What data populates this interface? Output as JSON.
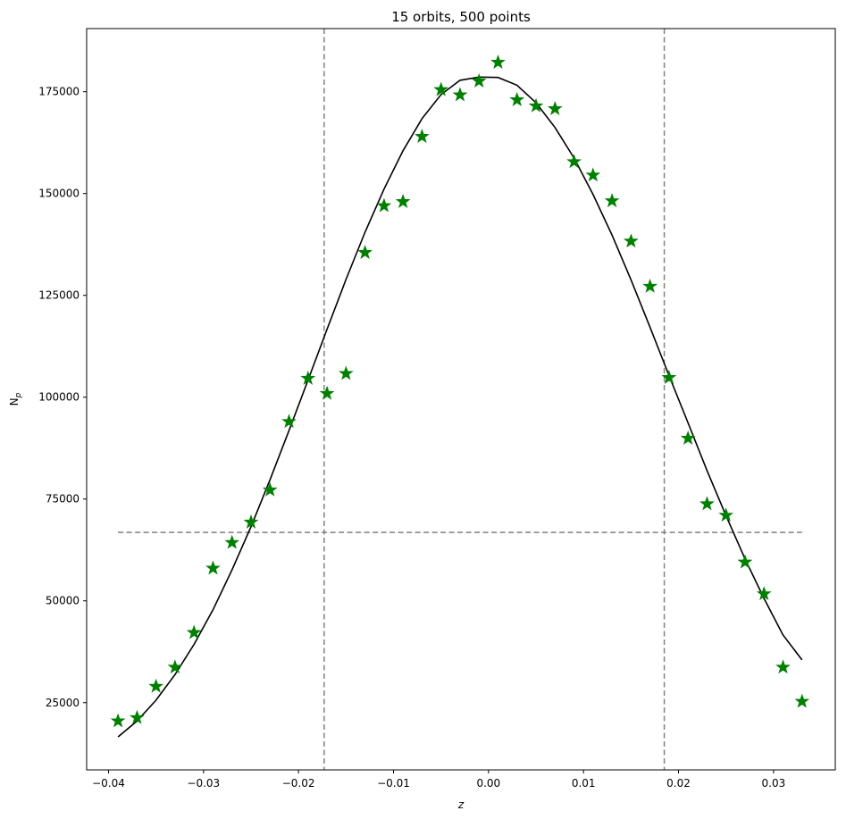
{
  "chart_data": {
    "type": "scatter",
    "title": "15 orbits, 500 points",
    "xlabel": "z",
    "ylabel": "N",
    "ylabel_sub": "p",
    "xlim": [
      -0.0423,
      0.0365
    ],
    "ylim": [
      8500,
      190500
    ],
    "xticks": [
      -0.04,
      -0.03,
      -0.02,
      -0.01,
      0.0,
      0.01,
      0.02,
      0.03
    ],
    "xtick_labels": [
      "−0.04",
      "−0.03",
      "−0.02",
      "−0.01",
      "0.00",
      "0.01",
      "0.02",
      "0.03"
    ],
    "yticks": [
      25000,
      50000,
      75000,
      100000,
      125000,
      150000,
      175000
    ],
    "ytick_labels": [
      "25000",
      "50000",
      "75000",
      "100000",
      "125000",
      "150000",
      "175000"
    ],
    "grid": false,
    "colors": {
      "points": "#008000",
      "fit": "#000000",
      "reference_lines": "#808080"
    },
    "series": [
      {
        "kind": "markers",
        "marker": "star",
        "x": [
          -0.039,
          -0.037,
          -0.035,
          -0.033,
          -0.031,
          -0.029,
          -0.027,
          -0.025,
          -0.023,
          -0.021,
          -0.019,
          -0.017,
          -0.015,
          -0.013,
          -0.011,
          -0.009,
          -0.007,
          -0.005,
          -0.003,
          -0.001,
          0.001,
          0.003,
          0.005,
          0.007,
          0.009,
          0.011,
          0.013,
          0.015,
          0.017,
          0.019,
          0.021,
          0.023,
          0.025,
          0.027,
          0.029,
          0.031,
          0.033
        ],
        "y": [
          20500,
          21300,
          29000,
          33700,
          42200,
          58000,
          64300,
          69300,
          77200,
          94000,
          104600,
          100900,
          105800,
          135500,
          147000,
          148000,
          164000,
          175500,
          174200,
          177600,
          182200,
          173000,
          171500,
          170800,
          157800,
          154500,
          148200,
          138300,
          127200,
          104800,
          89900,
          73800,
          71000,
          59500,
          51700,
          33700,
          25300
        ]
      },
      {
        "kind": "line",
        "x": [
          -0.039,
          -0.037,
          -0.035,
          -0.033,
          -0.031,
          -0.029,
          -0.027,
          -0.025,
          -0.023,
          -0.021,
          -0.019,
          -0.017,
          -0.015,
          -0.013,
          -0.011,
          -0.009,
          -0.007,
          -0.005,
          -0.003,
          -0.001,
          0.001,
          0.003,
          0.005,
          0.007,
          0.009,
          0.011,
          0.013,
          0.015,
          0.017,
          0.019,
          0.021,
          0.023,
          0.025,
          0.027,
          0.029,
          0.031,
          0.033
        ],
        "y": [
          16600,
          20500,
          25600,
          31900,
          39300,
          47800,
          57600,
          68200,
          79700,
          91800,
          104200,
          116700,
          128900,
          140500,
          151100,
          160500,
          168400,
          174300,
          177800,
          178600,
          178500,
          176600,
          172300,
          166200,
          158700,
          149800,
          139800,
          128800,
          117200,
          105300,
          93700,
          82000,
          70900,
          60300,
          50600,
          41600,
          35500
        ]
      }
    ],
    "reference_lines": [
      {
        "orientation": "vertical",
        "x": -0.0173,
        "style": "dashed"
      },
      {
        "orientation": "vertical",
        "x": 0.0185,
        "style": "dashed"
      },
      {
        "orientation": "horizontal",
        "y": 66800,
        "x_range": [
          -0.039,
          0.033
        ],
        "style": "dashed"
      }
    ]
  }
}
